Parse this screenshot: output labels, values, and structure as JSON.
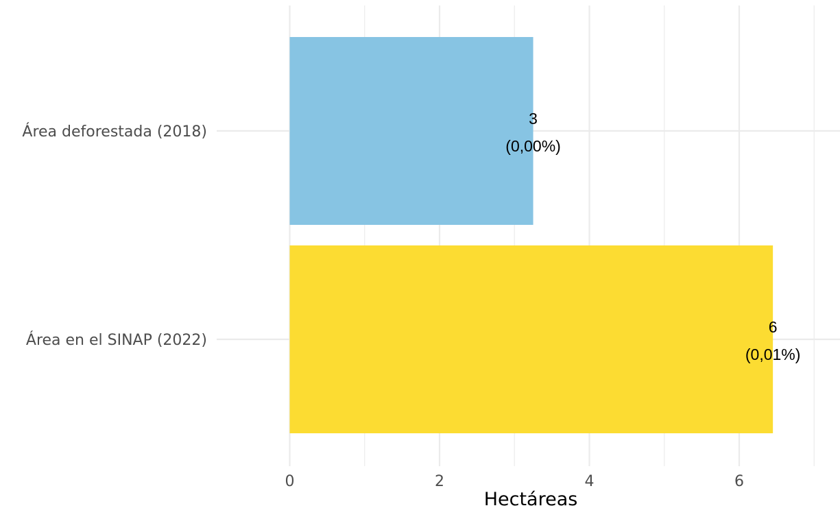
{
  "chart_data": {
    "type": "bar",
    "orientation": "horizontal",
    "categories": [
      "Área deforestada (2018)",
      "Área en el SINAP (2022)"
    ],
    "values": [
      3.25,
      6.45
    ],
    "value_labels": [
      "3",
      "6"
    ],
    "percent_labels": [
      "(0,00%)",
      "(0,01%)"
    ],
    "colors": [
      "#87c4e3",
      "#fcdc32"
    ],
    "xlabel": "Hectáreas",
    "ylabel": "",
    "xlim": [
      -0.6,
      7.35
    ],
    "x_ticks": [
      0,
      2,
      4,
      6
    ],
    "x_tick_labels": [
      "0",
      "2",
      "4",
      "6"
    ],
    "x_minor_ticks": [
      1,
      3,
      5,
      7
    ],
    "grid": true,
    "legend": "none"
  }
}
